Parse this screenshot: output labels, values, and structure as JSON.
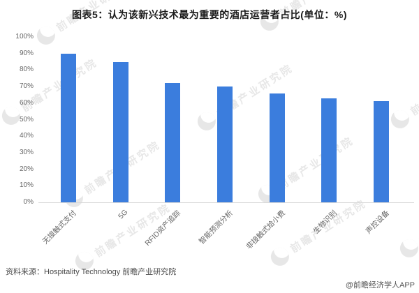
{
  "title": "图表5：认为该新兴技术最为重要的酒店运营者占比(单位：%)",
  "chart_data": {
    "type": "bar",
    "categories": [
      "无接触式支付",
      "5G",
      "RFID资产追踪",
      "智能预测分析",
      "非接触式给小费",
      "生物识别",
      "声控设备"
    ],
    "values": [
      90,
      85,
      72,
      70,
      66,
      63,
      61
    ],
    "title": "图表5：认为该新兴技术最为重要的酒店运营者占比(单位：%)",
    "xlabel": "",
    "ylabel": "",
    "ylim": [
      0,
      100
    ],
    "y_ticks": [
      "0%",
      "10%",
      "20%",
      "30%",
      "40%",
      "50%",
      "60%",
      "70%",
      "80%",
      "90%",
      "100%"
    ],
    "grid": false,
    "legend_position": "none",
    "bar_color": "#3b7ddd"
  },
  "footer": {
    "source": "资料来源：Hospitality Technology 前瞻产业研究院",
    "credit": "@前瞻经济学人APP"
  },
  "watermark": {
    "text": "前瞻产业研究院"
  },
  "colors": {
    "bar": "#3b7ddd",
    "axis_label": "#666666",
    "baseline": "#d9d9d9",
    "title_text": "#1a1a1a",
    "watermark": "#cccccc"
  }
}
